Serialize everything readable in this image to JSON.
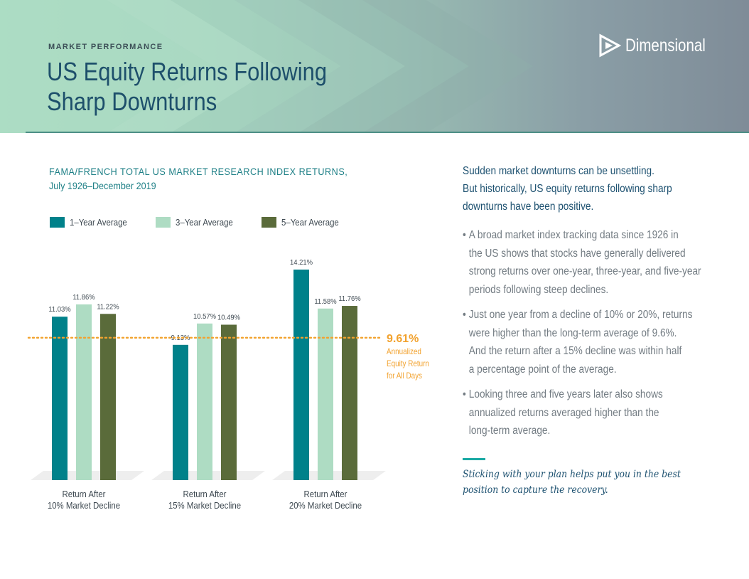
{
  "header": {
    "eyebrow": "MARKET PERFORMANCE",
    "title_lines": [
      "US Equity Returns Following",
      "Sharp Downturns"
    ],
    "logo_text": "Dimensional",
    "logo_icon": "dimensional-logo-icon"
  },
  "colors": {
    "one_year": "#00818a",
    "three_year": "#aedcc3",
    "five_year": "#5a6b3a",
    "reference": "#f2a22e",
    "title": "#1d4f6b",
    "accent": "#1aa9a4"
  },
  "chart_heading": {
    "line1": "FAMA/FRENCH TOTAL US MARKET RESEARCH INDEX RETURNS,",
    "line2": "July 1926–December 2019"
  },
  "chart_data": {
    "type": "bar",
    "title": "",
    "xlabel": "",
    "ylabel": "",
    "ylim": [
      0,
      14.21
    ],
    "grid": false,
    "legend_position": "top-left",
    "categories": [
      [
        "Return After",
        "10% Market Decline"
      ],
      [
        "Return After",
        "15% Market Decline"
      ],
      [
        "Return After",
        "20% Market Decline"
      ]
    ],
    "series": [
      {
        "name": "1–Year Average",
        "values": [
          11.03,
          9.13,
          14.21
        ],
        "labels": [
          "11.03%",
          "9.13%",
          "14.21%"
        ]
      },
      {
        "name": "3–Year Average",
        "values": [
          11.86,
          10.57,
          11.58
        ],
        "labels": [
          "11.86%",
          "10.57%",
          "11.58%"
        ]
      },
      {
        "name": "5–Year Average",
        "values": [
          11.22,
          10.49,
          11.76
        ],
        "labels": [
          "11.22%",
          "10.49%",
          "11.76%"
        ]
      }
    ],
    "reference_line": {
      "value": 9.61,
      "label": "9.61%",
      "annotation_lines": [
        "Annualized",
        "Equity Return",
        "for All Days"
      ]
    }
  },
  "right_column": {
    "intro_lines": [
      "Sudden market downturns can be unsettling.",
      "But historically, US equity returns following sharp",
      "downturns have been positive."
    ],
    "bullets": [
      [
        "A broad market index tracking data since 1926 in",
        "the US shows that stocks have generally delivered",
        "strong returns over one-year, three-year, and five-year",
        "periods following steep declines."
      ],
      [
        "Just one year from a decline of 10% or 20%, returns",
        "were higher than the long-term average of 9.6%.",
        "And the return after a 15% decline was within half",
        "a percentage point of the average."
      ],
      [
        "Looking three and five years later also shows",
        "annualized returns averaged higher than the",
        "long-term average."
      ]
    ],
    "closing_lines": [
      "Sticking with your plan helps put you in the best",
      "position to capture the recovery."
    ]
  }
}
